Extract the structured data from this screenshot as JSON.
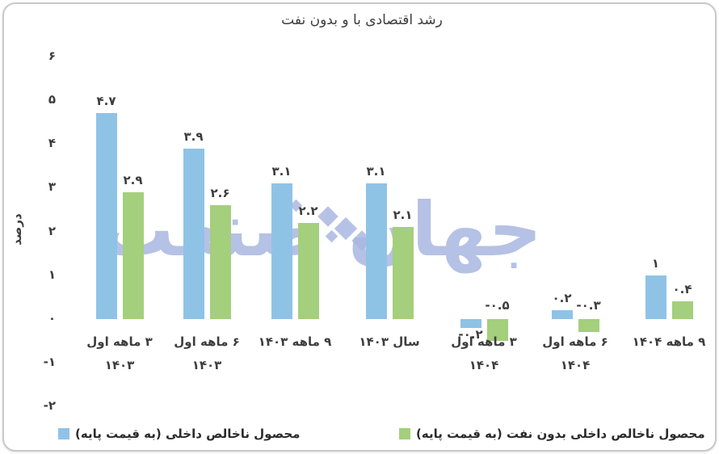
{
  "title": "رشد اقتصادی با و بدون نفت",
  "watermark": {
    "text": "جهان صنعت"
  },
  "axes": {
    "y_title": "درصد",
    "y_ticks": [
      {
        "value": 6,
        "label": "۶"
      },
      {
        "value": 5,
        "label": "۵"
      },
      {
        "value": 4,
        "label": "۴"
      },
      {
        "value": 3,
        "label": "۳"
      },
      {
        "value": 2,
        "label": "۲"
      },
      {
        "value": 1,
        "label": "۱"
      },
      {
        "value": 0,
        "label": "۰"
      },
      {
        "value": -1,
        "label": "-۱"
      },
      {
        "value": -2,
        "label": "-۲"
      }
    ]
  },
  "colors": {
    "gdp_blue": "#8fc3e6",
    "non_oil_green": "#a4cf7c",
    "text": "#3d3d3d",
    "watermark": "#a9b7e1",
    "border": "#c9c9c9"
  },
  "chart_data": {
    "type": "bar",
    "title": "رشد اقتصادی با و بدون نفت",
    "ylabel": "درصد",
    "ylim": [
      -2,
      6
    ],
    "grid": false,
    "legend_position": "bottom",
    "categories": [
      {
        "lines": [
          "۳ ماهه اول",
          "۱۴۰۳"
        ]
      },
      {
        "lines": [
          "۶ ماهه اول",
          "۱۴۰۳"
        ]
      },
      {
        "lines": [
          "۹ ماهه ۱۴۰۳"
        ]
      },
      {
        "lines": [
          "سال ۱۴۰۳"
        ]
      },
      {
        "lines": [
          "۳ ماهه اول",
          "۱۴۰۴"
        ]
      },
      {
        "lines": [
          "۶ ماهه اول",
          "۱۴۰۴"
        ]
      },
      {
        "lines": [
          "۹ ماهه ۱۴۰۴"
        ]
      }
    ],
    "series": [
      {
        "name": "محصول ناخالص داخلی (به قیمت پایه)",
        "color": "#8fc3e6",
        "values": [
          4.7,
          3.9,
          3.1,
          3.1,
          -0.2,
          0.2,
          1
        ],
        "labels": [
          "۴.۷",
          "۳.۹",
          "۳.۱",
          "۳.۱",
          "-۰.۲",
          "۰.۲",
          "۱"
        ],
        "label_pos": [
          "above",
          "above",
          "above",
          "above",
          "below",
          "above",
          "above"
        ]
      },
      {
        "name": "محصول ناخالص داخلی بدون نفت (به قیمت پایه)",
        "color": "#a4cf7c",
        "values": [
          2.9,
          2.6,
          2.2,
          2.1,
          -0.5,
          -0.3,
          0.4
        ],
        "labels": [
          "۲.۹",
          "۲.۶",
          "۲.۲",
          "۲.۱",
          "-۰.۵",
          "-۰.۳",
          "۰.۴"
        ],
        "label_pos": [
          "above",
          "above",
          "above",
          "above",
          "raised",
          "raised",
          "above"
        ]
      }
    ]
  },
  "legend": [
    {
      "label": "محصول ناخالص داخلی (به قیمت پایه)",
      "color": "#8fc3e6"
    },
    {
      "label": "محصول ناخالص داخلی بدون نفت (به قیمت پایه)",
      "color": "#a4cf7c"
    }
  ]
}
